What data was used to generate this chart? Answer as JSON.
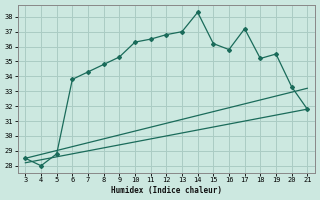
{
  "xlabel": "Humidex (Indice chaleur)",
  "ylabel": "",
  "bg_color": "#cce8e0",
  "grid_color": "#aaccc4",
  "line_color": "#1a6b5a",
  "xlim": [
    2.5,
    21.5
  ],
  "ylim": [
    27.5,
    38.8
  ],
  "xticks": [
    3,
    4,
    5,
    6,
    7,
    8,
    9,
    10,
    11,
    12,
    13,
    14,
    15,
    16,
    17,
    18,
    19,
    20,
    21
  ],
  "yticks": [
    28,
    29,
    30,
    31,
    32,
    33,
    34,
    35,
    36,
    37,
    38
  ],
  "curve1_x": [
    3,
    4,
    5,
    6,
    7,
    8,
    9,
    10,
    11,
    12,
    13,
    14,
    15,
    16,
    17,
    18,
    19,
    20,
    21
  ],
  "curve1_y": [
    28.5,
    28.0,
    28.8,
    33.8,
    34.3,
    34.8,
    35.3,
    36.3,
    36.5,
    36.8,
    37.0,
    38.3,
    36.2,
    35.8,
    37.2,
    35.2,
    35.5,
    33.3,
    31.8
  ],
  "curve2_x": [
    3,
    21
  ],
  "curve2_y": [
    28.5,
    33.2
  ],
  "curve3_x": [
    3,
    21
  ],
  "curve3_y": [
    28.2,
    31.8
  ]
}
